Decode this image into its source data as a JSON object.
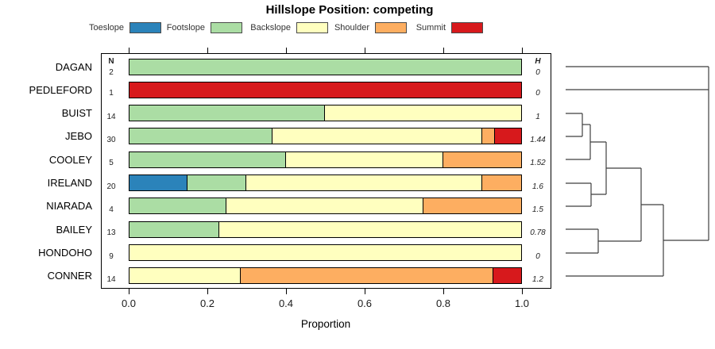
{
  "chart_data": {
    "type": "bar",
    "variant": "horizontal-stacked-proportion",
    "title": "Hillslope Position: competing",
    "xlabel": "Proportion",
    "xlim": [
      0,
      1
    ],
    "x_ticks": [
      0,
      0.2,
      0.4,
      0.6,
      0.8,
      1.0
    ],
    "x_tick_labels": [
      "0.0",
      "0.2",
      "0.4",
      "0.6",
      "0.8",
      "1.0"
    ],
    "grid": false,
    "legend_position": "top",
    "n_column_header": "N",
    "h_column_header": "H",
    "categories": [
      "DAGAN",
      "PEDLEFORD",
      "BUIST",
      "JEBO",
      "COOLEY",
      "IRELAND",
      "NIARADA",
      "BAILEY",
      "HONDOHO",
      "CONNER"
    ],
    "n_values": [
      2,
      1,
      14,
      30,
      5,
      20,
      4,
      13,
      9,
      14
    ],
    "h_values": [
      "0",
      "0",
      "1",
      "1.44",
      "1.52",
      "1.6",
      "1.5",
      "0.78",
      "0",
      "1.2"
    ],
    "series": [
      {
        "name": "Toeslope",
        "color": "#2B83BA",
        "values": [
          0,
          0,
          0,
          0,
          0,
          0.15,
          0,
          0,
          0,
          0
        ]
      },
      {
        "name": "Footslope",
        "color": "#ABDDA4",
        "values": [
          1,
          0,
          0.5,
          0.3667,
          0.4,
          0.15,
          0.25,
          0.2308,
          0,
          0
        ]
      },
      {
        "name": "Backslope",
        "color": "#FFFFBF",
        "values": [
          0,
          0,
          0.5,
          0.5333,
          0.4,
          0.6,
          0.5,
          0.7692,
          1,
          0.2857
        ]
      },
      {
        "name": "Shoulder",
        "color": "#FDAE61",
        "values": [
          0,
          0,
          0,
          0.0333,
          0.2,
          0.1,
          0.25,
          0,
          0,
          0.6429
        ]
      },
      {
        "name": "Summit",
        "color": "#D7191C",
        "values": [
          0,
          1,
          0,
          0.0667,
          0,
          0,
          0,
          0,
          0,
          0.0714
        ]
      }
    ],
    "dendrogram": {
      "orientation": "right",
      "segments": [
        [
          712,
          84,
          892,
          84
        ],
        [
          712,
          113,
          892,
          113
        ],
        [
          892,
          84,
          892,
          303
        ],
        [
          712,
          143,
          733,
          143
        ],
        [
          712,
          172,
          733,
          172
        ],
        [
          733,
          143,
          733,
          172
        ],
        [
          733,
          157,
          743,
          157
        ],
        [
          712,
          201,
          743,
          201
        ],
        [
          743,
          157,
          743,
          201
        ],
        [
          743,
          179,
          763,
          179
        ],
        [
          712,
          231,
          744,
          231
        ],
        [
          712,
          260,
          744,
          260
        ],
        [
          744,
          231,
          744,
          260
        ],
        [
          744,
          245,
          763,
          245
        ],
        [
          763,
          179,
          763,
          245
        ],
        [
          763,
          212,
          807,
          212
        ],
        [
          712,
          289,
          753,
          289
        ],
        [
          712,
          319,
          753,
          319
        ],
        [
          753,
          289,
          753,
          319
        ],
        [
          753,
          304,
          807,
          304
        ],
        [
          807,
          212,
          807,
          304
        ],
        [
          807,
          258,
          835,
          258
        ],
        [
          712,
          348,
          835,
          348
        ],
        [
          835,
          258,
          835,
          348
        ],
        [
          835,
          303,
          892,
          303
        ]
      ]
    }
  },
  "colors": {
    "bar_border": "#000000",
    "dendrogram_line": "#3f3f3f",
    "legend_swatch_border": "#4a4a4a",
    "axis_line": "#000000",
    "text": "#1a1a1a",
    "muted_text": "#333333"
  },
  "layout_labels": {
    "legend_swatch_lefts": [
      163,
      265,
      373,
      472,
      568
    ]
  }
}
